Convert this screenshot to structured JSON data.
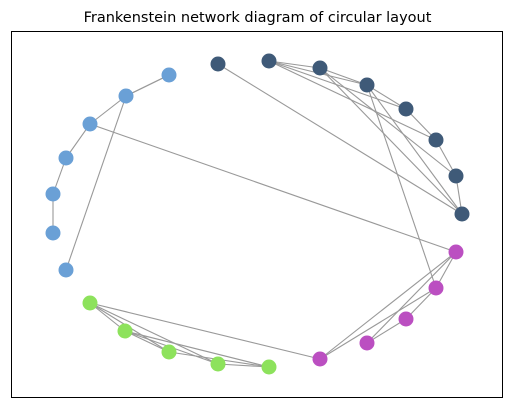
{
  "title": "Frankenstein network diagram of circular layout",
  "colors": {
    "dark_blue": "#3f5a78",
    "light_blue": "#6aa0d6",
    "green": "#8de25c",
    "magenta": "#bb4fc1",
    "edge": "#999999",
    "frame": "#000000",
    "background": "#ffffff"
  },
  "groups": [
    "dark_blue",
    "light_blue",
    "green",
    "magenta"
  ],
  "nodes": [
    {
      "id": 0,
      "group": "dark_blue"
    },
    {
      "id": 1,
      "group": "dark_blue"
    },
    {
      "id": 2,
      "group": "dark_blue"
    },
    {
      "id": 3,
      "group": "dark_blue"
    },
    {
      "id": 4,
      "group": "dark_blue"
    },
    {
      "id": 5,
      "group": "dark_blue"
    },
    {
      "id": 6,
      "group": "dark_blue"
    },
    {
      "id": 7,
      "group": "dark_blue"
    },
    {
      "id": 8,
      "group": "light_blue"
    },
    {
      "id": 9,
      "group": "light_blue"
    },
    {
      "id": 10,
      "group": "light_blue"
    },
    {
      "id": 11,
      "group": "light_blue"
    },
    {
      "id": 12,
      "group": "light_blue"
    },
    {
      "id": 13,
      "group": "light_blue"
    },
    {
      "id": 14,
      "group": "light_blue"
    },
    {
      "id": 15,
      "group": "green"
    },
    {
      "id": 16,
      "group": "green"
    },
    {
      "id": 17,
      "group": "green"
    },
    {
      "id": 18,
      "group": "green"
    },
    {
      "id": 19,
      "group": "green"
    },
    {
      "id": 20,
      "group": "magenta"
    },
    {
      "id": 21,
      "group": "magenta"
    },
    {
      "id": 22,
      "group": "magenta"
    },
    {
      "id": 23,
      "group": "magenta"
    },
    {
      "id": 24,
      "group": "magenta"
    }
  ],
  "edges": [
    [
      1,
      2
    ],
    [
      1,
      3
    ],
    [
      1,
      4
    ],
    [
      1,
      5
    ],
    [
      2,
      3
    ],
    [
      2,
      6
    ],
    [
      2,
      7
    ],
    [
      3,
      4
    ],
    [
      3,
      7
    ],
    [
      3,
      23
    ],
    [
      0,
      7
    ],
    [
      4,
      5
    ],
    [
      5,
      6
    ],
    [
      6,
      7
    ],
    [
      8,
      9
    ],
    [
      9,
      10
    ],
    [
      9,
      14
    ],
    [
      10,
      11
    ],
    [
      11,
      12
    ],
    [
      12,
      13
    ],
    [
      8,
      9
    ],
    [
      10,
      24
    ],
    [
      15,
      16
    ],
    [
      15,
      17
    ],
    [
      15,
      18
    ],
    [
      16,
      17
    ],
    [
      16,
      18
    ],
    [
      16,
      19
    ],
    [
      17,
      19
    ],
    [
      18,
      19
    ],
    [
      15,
      20
    ],
    [
      20,
      24
    ],
    [
      20,
      23
    ],
    [
      21,
      22
    ],
    [
      22,
      23
    ],
    [
      23,
      24
    ],
    [
      21,
      24
    ]
  ]
}
